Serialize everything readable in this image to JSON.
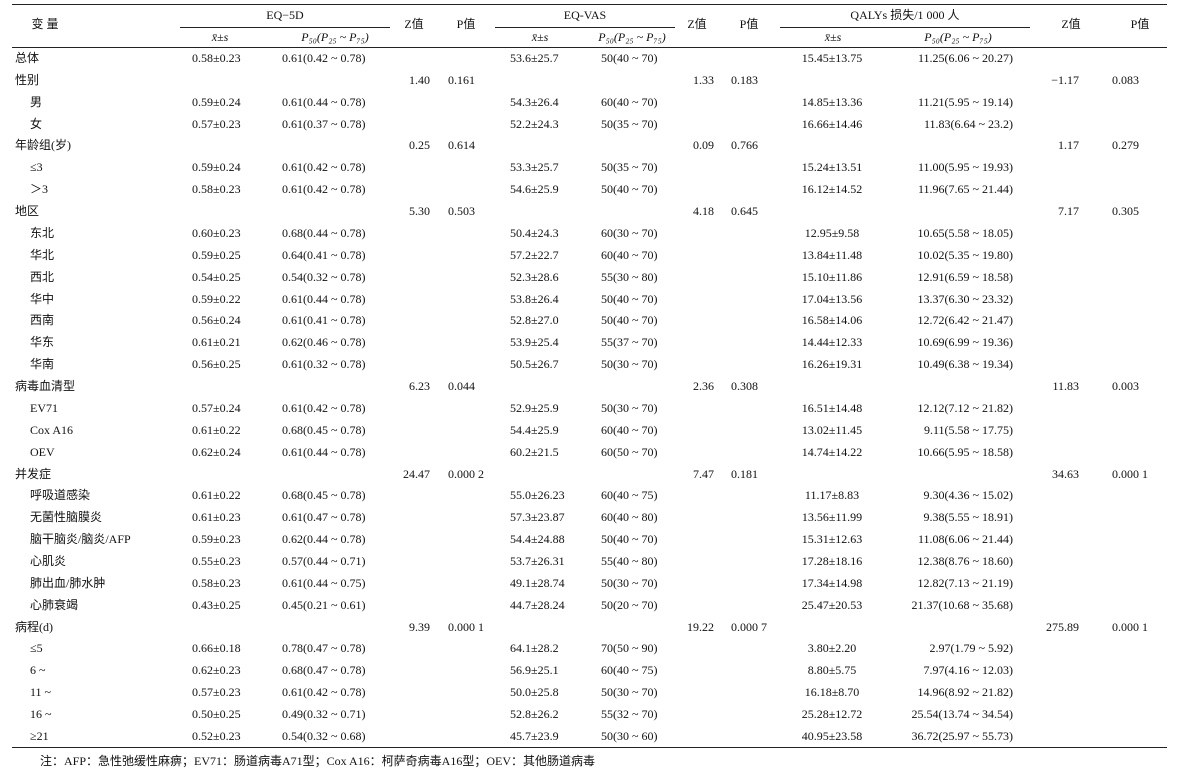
{
  "header": {
    "variable": "变 量",
    "groups": [
      {
        "name": "EQ−5D",
        "cols": [
          "x̄±s",
          "P₅₀(P₂₅ ~ P₇₅)"
        ],
        "z": "Z值",
        "p": "P值"
      },
      {
        "name": "EQ-VAS",
        "cols": [
          "x̄±s",
          "P₅₀(P₂₅ ~ P₇₅)"
        ],
        "z": "Z值",
        "p": "P值"
      },
      {
        "name": "QALYs 损失/1 000 人",
        "cols": [
          "x̄±s",
          "P₅₀(P₂₅ ~ P₇₅)"
        ],
        "z": "Z值",
        "p": "P值"
      }
    ]
  },
  "table": {
    "groups": [
      {
        "label": "总体",
        "eq5d": [
          "0.58±0.23",
          "0.61(0.42 ~ 0.78)"
        ],
        "vas": [
          "53.6±25.7",
          "50(40 ~ 70)"
        ],
        "qaly": [
          "15.45±13.75",
          "11.25(6.06 ~ 20.27)"
        ]
      },
      {
        "label": "性别",
        "tests": {
          "eq5d": [
            "1.40",
            "0.161"
          ],
          "vas": [
            "1.33",
            "0.183"
          ],
          "qaly": [
            "−1.17",
            "0.083"
          ]
        },
        "items": [
          {
            "label": "男",
            "eq5d": [
              "0.59±0.24",
              "0.61(0.44 ~ 0.78)"
            ],
            "vas": [
              "54.3±26.4",
              "60(40 ~ 70)"
            ],
            "qaly": [
              "14.85±13.36",
              "11.21(5.95 ~ 19.14)"
            ]
          },
          {
            "label": "女",
            "eq5d": [
              "0.57±0.23",
              "0.61(0.37 ~ 0.78)"
            ],
            "vas": [
              "52.2±24.3",
              "50(35 ~ 70)"
            ],
            "qaly": [
              "16.66±14.46",
              "11.83(6.64 ~ 23.2)"
            ]
          }
        ]
      },
      {
        "label": "年龄组(岁)",
        "tests": {
          "eq5d": [
            "0.25",
            "0.614"
          ],
          "vas": [
            "0.09",
            "0.766"
          ],
          "qaly": [
            "1.17",
            "0.279"
          ]
        },
        "items": [
          {
            "label": "≤3",
            "eq5d": [
              "0.59±0.24",
              "0.61(0.42 ~ 0.78)"
            ],
            "vas": [
              "53.3±25.7",
              "50(35 ~ 70)"
            ],
            "qaly": [
              "15.24±13.51",
              "11.00(5.95 ~ 19.93)"
            ]
          },
          {
            "label": "＞3",
            "eq5d": [
              "0.58±0.23",
              "0.61(0.42 ~ 0.78)"
            ],
            "vas": [
              "54.6±25.9",
              "50(40 ~ 70)"
            ],
            "qaly": [
              "16.12±14.52",
              "11.96(7.65 ~ 21.44)"
            ]
          }
        ]
      },
      {
        "label": "地区",
        "tests": {
          "eq5d": [
            "5.30",
            "0.503"
          ],
          "vas": [
            "4.18",
            "0.645"
          ],
          "qaly": [
            "7.17",
            "0.305"
          ]
        },
        "items": [
          {
            "label": "东北",
            "eq5d": [
              "0.60±0.23",
              "0.68(0.44 ~ 0.78)"
            ],
            "vas": [
              "50.4±24.3",
              "60(30 ~ 70)"
            ],
            "qaly": [
              "12.95±9.58",
              "10.65(5.58 ~ 18.05)"
            ]
          },
          {
            "label": "华北",
            "eq5d": [
              "0.59±0.25",
              "0.64(0.41 ~ 0.78)"
            ],
            "vas": [
              "57.2±22.7",
              "60(40 ~ 70)"
            ],
            "qaly": [
              "13.84±11.48",
              "10.02(5.35 ~ 19.80)"
            ]
          },
          {
            "label": "西北",
            "eq5d": [
              "0.54±0.25",
              "0.54(0.32 ~ 0.78)"
            ],
            "vas": [
              "52.3±28.6",
              "55(30 ~ 80)"
            ],
            "qaly": [
              "15.10±11.86",
              "12.91(6.59 ~ 18.58)"
            ]
          },
          {
            "label": "华中",
            "eq5d": [
              "0.59±0.22",
              "0.61(0.44 ~ 0.78)"
            ],
            "vas": [
              "53.8±26.4",
              "50(40 ~ 70)"
            ],
            "qaly": [
              "17.04±13.56",
              "13.37(6.30 ~ 23.32)"
            ]
          },
          {
            "label": "西南",
            "eq5d": [
              "0.56±0.24",
              "0.61(0.41 ~ 0.78)"
            ],
            "vas": [
              "52.8±27.0",
              "50(40 ~ 70)"
            ],
            "qaly": [
              "16.58±14.06",
              "12.72(6.42 ~ 21.47)"
            ]
          },
          {
            "label": "华东",
            "eq5d": [
              "0.61±0.21",
              "0.62(0.46 ~ 0.78)"
            ],
            "vas": [
              "53.9±25.4",
              "55(37 ~ 70)"
            ],
            "qaly": [
              "14.44±12.33",
              "10.69(6.99 ~ 19.36)"
            ]
          },
          {
            "label": "华南",
            "eq5d": [
              "0.56±0.25",
              "0.61(0.32 ~ 0.78)"
            ],
            "vas": [
              "50.5±26.7",
              "50(30 ~ 70)"
            ],
            "qaly": [
              "16.26±19.31",
              "10.49(6.38 ~ 19.34)"
            ]
          }
        ]
      },
      {
        "label": "病毒血清型",
        "tests": {
          "eq5d": [
            "6.23",
            "0.044"
          ],
          "vas": [
            "2.36",
            "0.308"
          ],
          "qaly": [
            "11.83",
            "0.003"
          ]
        },
        "items": [
          {
            "label": "EV71",
            "eq5d": [
              "0.57±0.24",
              "0.61(0.42 ~ 0.78)"
            ],
            "vas": [
              "52.9±25.9",
              "50(30 ~ 70)"
            ],
            "qaly": [
              "16.51±14.48",
              "12.12(7.12 ~ 21.82)"
            ]
          },
          {
            "label": "Cox A16",
            "eq5d": [
              "0.61±0.22",
              "0.68(0.45 ~ 0.78)"
            ],
            "vas": [
              "54.4±25.9",
              "60(40 ~ 70)"
            ],
            "qaly": [
              "13.02±11.45",
              "9.11(5.58 ~ 17.75)"
            ]
          },
          {
            "label": "OEV",
            "eq5d": [
              "0.62±0.24",
              "0.61(0.44 ~ 0.78)"
            ],
            "vas": [
              "60.2±21.5",
              "60(50 ~ 70)"
            ],
            "qaly": [
              "14.74±14.22",
              "10.66(5.95 ~ 18.58)"
            ]
          }
        ]
      },
      {
        "label": "并发症",
        "tests": {
          "eq5d": [
            "24.47",
            "0.000 2"
          ],
          "vas": [
            "7.47",
            "0.181"
          ],
          "qaly": [
            "34.63",
            "0.000 1"
          ]
        },
        "items": [
          {
            "label": "呼吸道感染",
            "eq5d": [
              "0.61±0.22",
              "0.68(0.45 ~ 0.78)"
            ],
            "vas": [
              "55.0±26.23",
              "60(40 ~ 75)"
            ],
            "qaly": [
              "11.17±8.83",
              "9.30(4.36 ~ 15.02)"
            ]
          },
          {
            "label": "无菌性脑膜炎",
            "eq5d": [
              "0.61±0.23",
              "0.61(0.47 ~ 0.78)"
            ],
            "vas": [
              "57.3±23.87",
              "60(40 ~ 80)"
            ],
            "qaly": [
              "13.56±11.99",
              "9.38(5.55 ~ 18.91)"
            ]
          },
          {
            "label": "脑干脑炎/脑炎/AFP",
            "eq5d": [
              "0.59±0.23",
              "0.62(0.44 ~ 0.78)"
            ],
            "vas": [
              "54.4±24.88",
              "50(40 ~ 70)"
            ],
            "qaly": [
              "15.31±12.63",
              "11.08(6.06 ~ 21.44)"
            ]
          },
          {
            "label": "心肌炎",
            "eq5d": [
              "0.55±0.23",
              "0.57(0.44 ~ 0.71)"
            ],
            "vas": [
              "53.7±26.31",
              "55(40 ~ 80)"
            ],
            "qaly": [
              "17.28±18.16",
              "12.38(8.76 ~ 18.60)"
            ]
          },
          {
            "label": "肺出血/肺水肿",
            "eq5d": [
              "0.58±0.23",
              "0.61(0.44 ~ 0.75)"
            ],
            "vas": [
              "49.1±28.74",
              "50(30 ~ 70)"
            ],
            "qaly": [
              "17.34±14.98",
              "12.82(7.13 ~ 21.19)"
            ]
          },
          {
            "label": "心肺衰竭",
            "eq5d": [
              "0.43±0.25",
              "0.45(0.21 ~ 0.61)"
            ],
            "vas": [
              "44.7±28.24",
              "50(20 ~ 70)"
            ],
            "qaly": [
              "25.47±20.53",
              "21.37(10.68 ~ 35.68)"
            ]
          }
        ]
      },
      {
        "label": "病程(d)",
        "tests": {
          "eq5d": [
            "9.39",
            "0.000 1"
          ],
          "vas": [
            "19.22",
            "0.000 7"
          ],
          "qaly": [
            "275.89",
            "0.000 1"
          ]
        },
        "items": [
          {
            "label": "≤5",
            "eq5d": [
              "0.66±0.18",
              "0.78(0.47 ~ 0.78)"
            ],
            "vas": [
              "64.1±28.2",
              "70(50 ~ 90)"
            ],
            "qaly": [
              "3.80±2.20",
              "2.97(1.79 ~ 5.92)"
            ]
          },
          {
            "label": "6 ~",
            "eq5d": [
              "0.62±0.23",
              "0.68(0.47 ~ 0.78)"
            ],
            "vas": [
              "56.9±25.1",
              "60(40 ~ 75)"
            ],
            "qaly": [
              "8.80±5.75",
              "7.97(4.16 ~ 12.03)"
            ]
          },
          {
            "label": "11 ~",
            "eq5d": [
              "0.57±0.23",
              "0.61(0.42 ~ 0.78)"
            ],
            "vas": [
              "50.0±25.8",
              "50(30 ~ 70)"
            ],
            "qaly": [
              "16.18±8.70",
              "14.96(8.92 ~ 21.82)"
            ]
          },
          {
            "label": "16 ~",
            "eq5d": [
              "0.50±0.25",
              "0.49(0.32 ~ 0.71)"
            ],
            "vas": [
              "52.8±26.2",
              "55(32 ~ 70)"
            ],
            "qaly": [
              "25.28±12.72",
              "25.54(13.74 ~ 34.54)"
            ]
          },
          {
            "label": "≥21",
            "eq5d": [
              "0.52±0.23",
              "0.54(0.32 ~ 0.68)"
            ],
            "vas": [
              "45.7±23.9",
              "50(30 ~ 60)"
            ],
            "qaly": [
              "40.95±23.58",
              "36.72(25.97 ~ 55.73)"
            ]
          }
        ]
      }
    ]
  },
  "footnote": "注：AFP：急性弛缓性麻痹；EV71：肠道病毒A71型；Cox A16：柯萨奇病毒A16型；OEV：其他肠道病毒"
}
